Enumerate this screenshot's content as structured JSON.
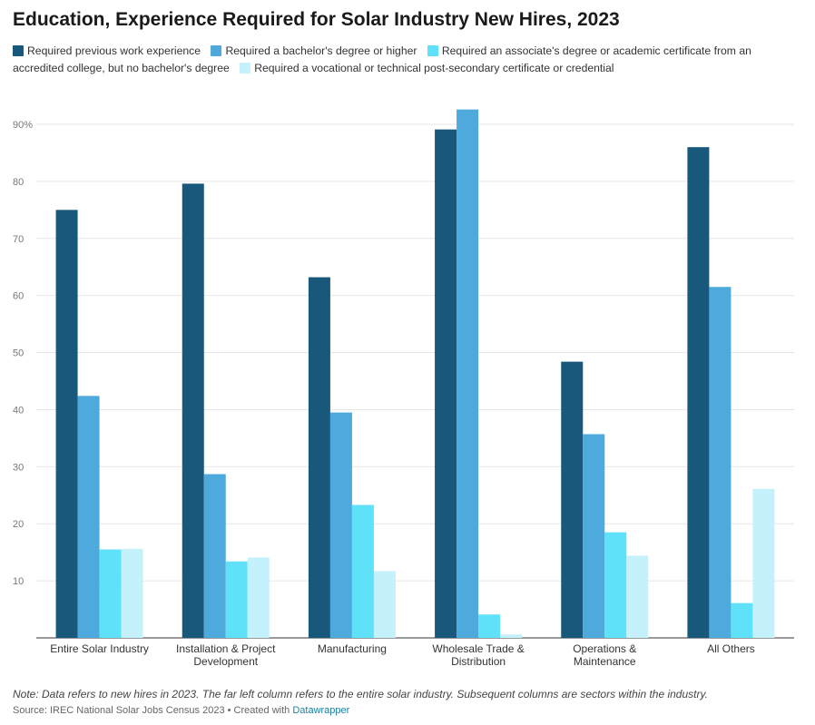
{
  "title": "Education, Experience Required for Solar Industry New Hires, 2023",
  "legend": [
    {
      "label": "Required previous work experience",
      "color": "#18587a"
    },
    {
      "label": "Required a bachelor's degree or higher",
      "color": "#4ea9dc"
    },
    {
      "label": "Required an associate's degree or academic certificate from an accredited college, but no bachelor's degree",
      "color": "#5ee1f9"
    },
    {
      "label": "Required a vocational or technical post-secondary certificate or credential",
      "color": "#c4f1fb"
    }
  ],
  "note": "Note: Data refers to new hires in 2023. The far left column refers to the entire solar industry. Subsequent columns are sectors within the industry.",
  "source": {
    "prefix": "Source: IREC National Solar Jobs Census 2023 • Created with ",
    "link": "Datawrapper"
  },
  "chart_data": {
    "type": "bar",
    "categories": [
      [
        "Entire Solar Industry"
      ],
      [
        "Installation & Project",
        "Development"
      ],
      [
        "Manufacturing"
      ],
      [
        "Wholesale Trade &",
        "Distribution"
      ],
      [
        "Operations &",
        "Maintenance"
      ],
      [
        "All Others"
      ]
    ],
    "series": [
      {
        "name": "Required previous work experience",
        "color": "#18587a",
        "values": [
          75.0,
          79.6,
          63.2,
          89.1,
          48.4,
          86.0
        ]
      },
      {
        "name": "Required a bachelor's degree or higher",
        "color": "#4ea9dc",
        "values": [
          42.4,
          28.7,
          39.5,
          92.6,
          35.7,
          61.5
        ]
      },
      {
        "name": "Required an associate's degree or academic certificate from an accredited college, but no bachelor's degree",
        "color": "#5ee1f9",
        "values": [
          15.5,
          13.4,
          23.3,
          4.1,
          18.5,
          6.1
        ]
      },
      {
        "name": "Required a vocational or technical post-secondary certificate or credential",
        "color": "#c4f1fb",
        "values": [
          15.6,
          14.1,
          11.7,
          0.6,
          14.4,
          26.1
        ]
      }
    ],
    "yticks": [
      {
        "value": 10,
        "label": "10"
      },
      {
        "value": 20,
        "label": "20"
      },
      {
        "value": 30,
        "label": "30"
      },
      {
        "value": 40,
        "label": "40"
      },
      {
        "value": 50,
        "label": "50"
      },
      {
        "value": 60,
        "label": "60"
      },
      {
        "value": 70,
        "label": "70"
      },
      {
        "value": 80,
        "label": "80"
      },
      {
        "value": 90,
        "label": "90%"
      }
    ],
    "ylim": [
      0,
      90
    ],
    "grid": true,
    "legend_position": "top"
  }
}
